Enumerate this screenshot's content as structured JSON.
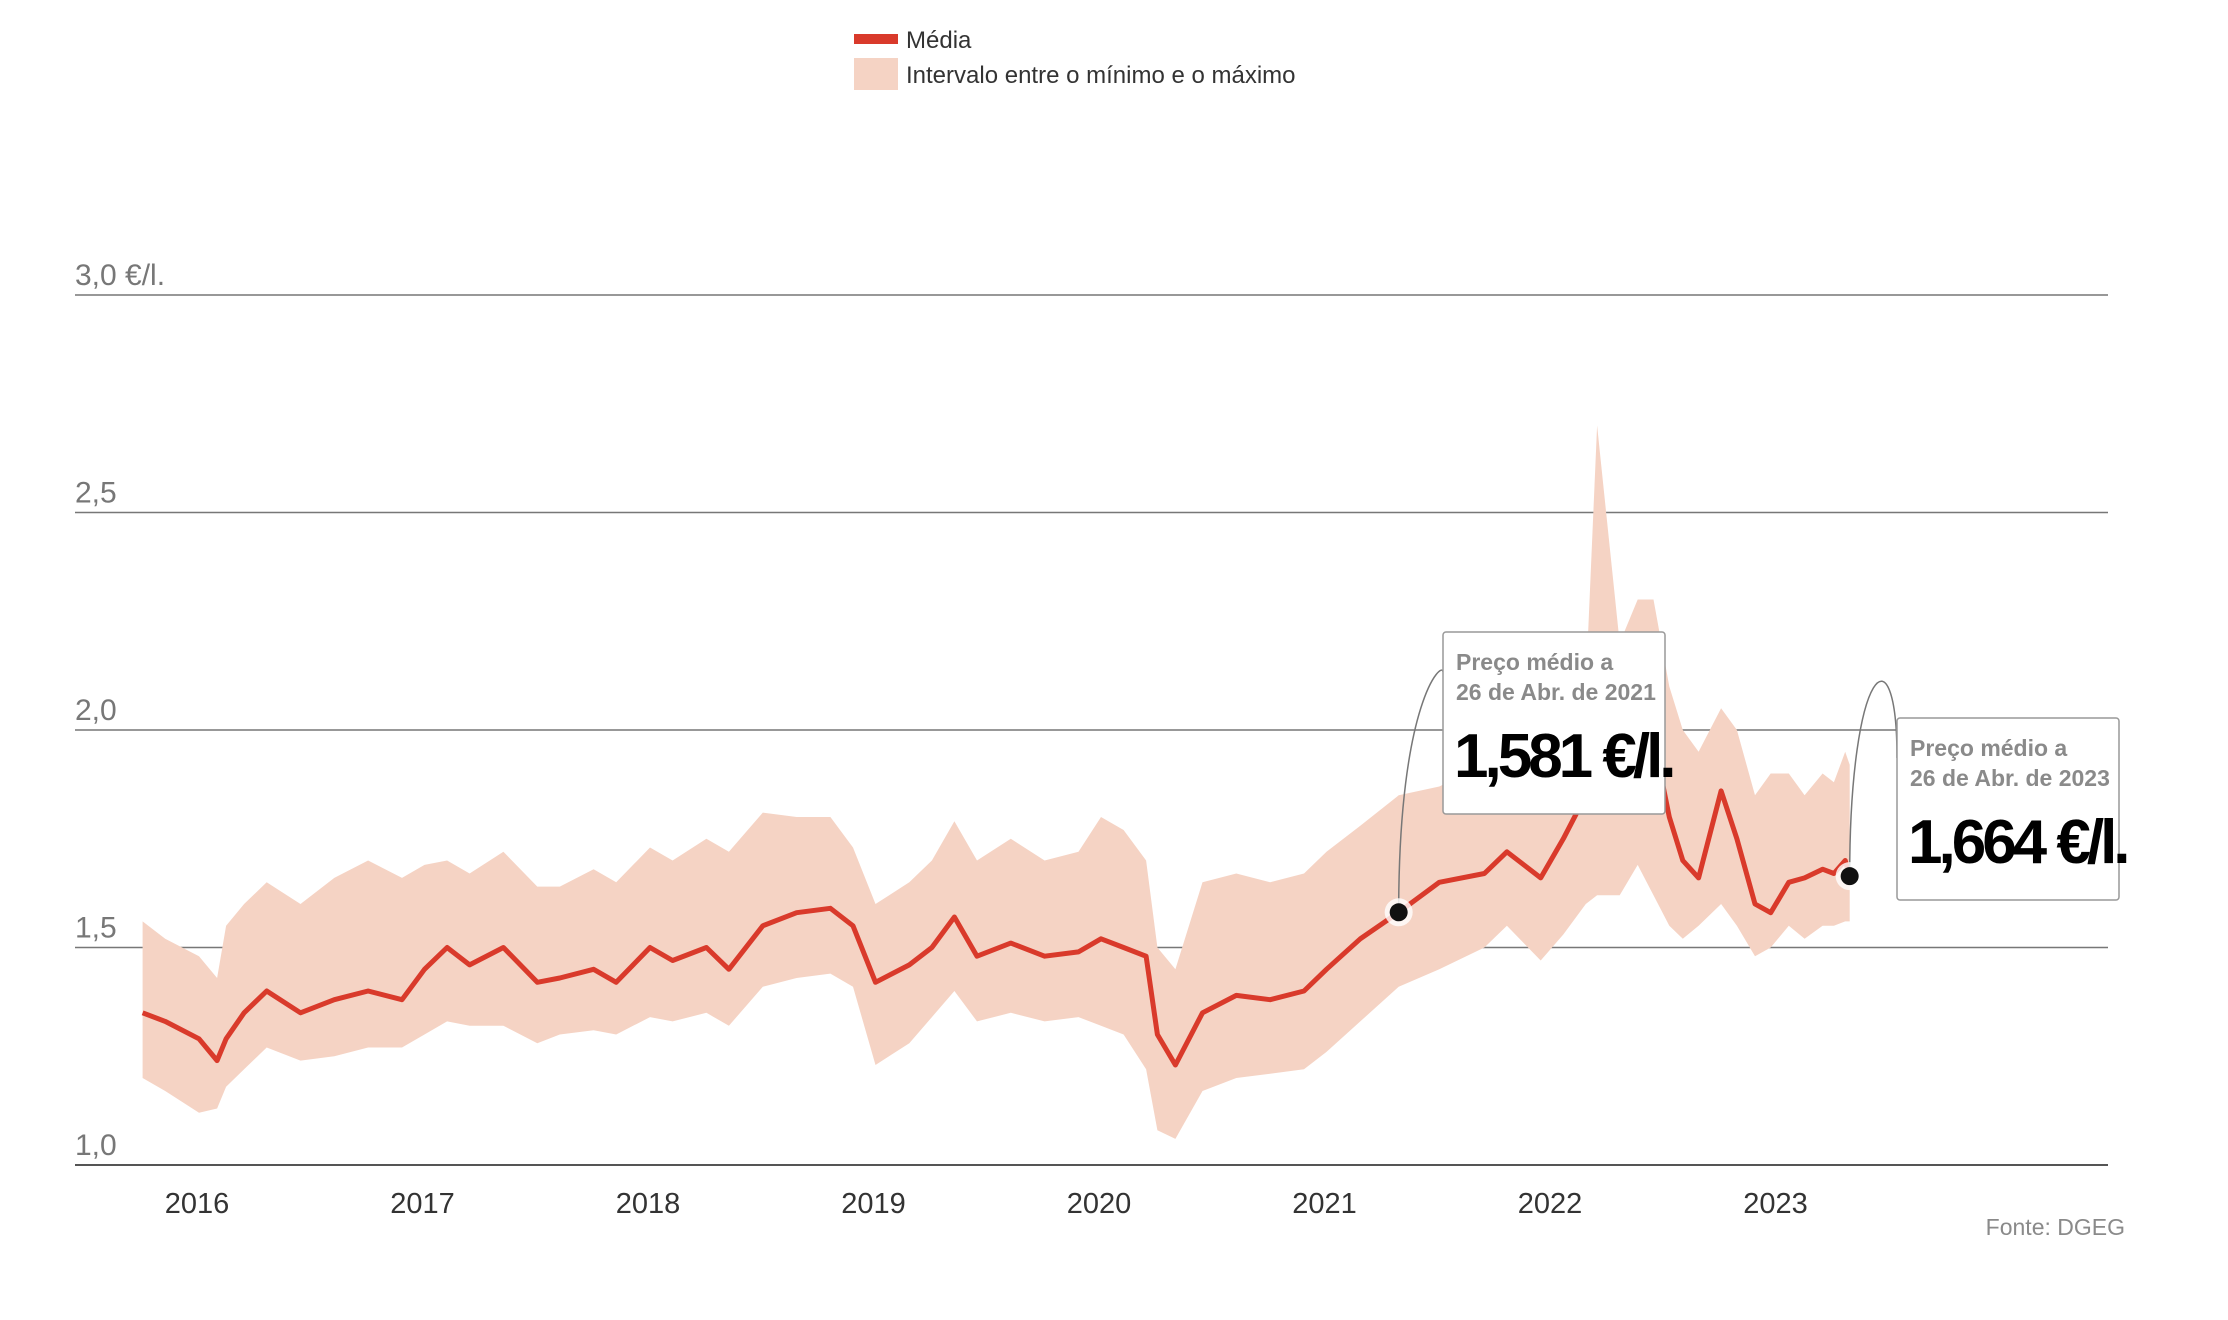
{
  "chart_data": {
    "type": "line",
    "title": "",
    "xlabel": "",
    "ylabel": "",
    "ylim": [
      1.0,
      3.0
    ],
    "y_ticks": [
      {
        "value": 1.0,
        "label": "1,0"
      },
      {
        "value": 1.5,
        "label": "1,5"
      },
      {
        "value": 2.0,
        "label": "2,0"
      },
      {
        "value": 2.5,
        "label": "2,5"
      },
      {
        "value": 3.0,
        "label": "3,0 €/l."
      }
    ],
    "x_ticks": [
      {
        "value": 2016,
        "label": "2016"
      },
      {
        "value": 2017,
        "label": "2017"
      },
      {
        "value": 2018,
        "label": "2018"
      },
      {
        "value": 2019,
        "label": "2019"
      },
      {
        "value": 2020,
        "label": "2020"
      },
      {
        "value": 2021,
        "label": "2021"
      },
      {
        "value": 2022,
        "label": "2022"
      },
      {
        "value": 2023,
        "label": "2023"
      }
    ],
    "legend": {
      "placement": "top-center",
      "entries": [
        {
          "name": "Média",
          "color": "#d93a2b",
          "kind": "line"
        },
        {
          "name": "Intervalo entre o mínimo e o máximo",
          "color": "#f5d3c4",
          "kind": "area"
        }
      ]
    },
    "grid": true,
    "source": "Fonte: DGEG",
    "colors": {
      "mean": "#d93a2b",
      "range": "#f5d3c4",
      "grid": "#777777",
      "axis": "#555555"
    },
    "series": [
      {
        "name": "Média",
        "x": [
          2015.75,
          2015.85,
          2016.0,
          2016.08,
          2016.12,
          2016.2,
          2016.3,
          2016.45,
          2016.6,
          2016.75,
          2016.9,
          2017.0,
          2017.1,
          2017.2,
          2017.35,
          2017.5,
          2017.6,
          2017.75,
          2017.85,
          2018.0,
          2018.1,
          2018.25,
          2018.35,
          2018.5,
          2018.65,
          2018.8,
          2018.9,
          2019.0,
          2019.15,
          2019.25,
          2019.35,
          2019.45,
          2019.6,
          2019.75,
          2019.9,
          2020.0,
          2020.1,
          2020.2,
          2020.25,
          2020.33,
          2020.45,
          2020.6,
          2020.75,
          2020.9,
          2021.0,
          2021.15,
          2021.32,
          2021.5,
          2021.7,
          2021.8,
          2021.95,
          2022.05,
          2022.15,
          2022.2,
          2022.3,
          2022.38,
          2022.45,
          2022.52,
          2022.58,
          2022.65,
          2022.75,
          2022.82,
          2022.9,
          2022.97,
          2023.05,
          2023.12,
          2023.2,
          2023.25,
          2023.3,
          2023.32
        ],
        "values": [
          1.35,
          1.33,
          1.29,
          1.24,
          1.29,
          1.35,
          1.4,
          1.35,
          1.38,
          1.4,
          1.38,
          1.45,
          1.5,
          1.46,
          1.5,
          1.42,
          1.43,
          1.45,
          1.42,
          1.5,
          1.47,
          1.5,
          1.45,
          1.55,
          1.58,
          1.59,
          1.55,
          1.42,
          1.46,
          1.5,
          1.57,
          1.48,
          1.51,
          1.48,
          1.49,
          1.52,
          1.5,
          1.48,
          1.3,
          1.23,
          1.35,
          1.39,
          1.38,
          1.4,
          1.45,
          1.52,
          1.581,
          1.65,
          1.67,
          1.72,
          1.66,
          1.75,
          1.85,
          1.95,
          2.05,
          2.19,
          1.98,
          1.8,
          1.7,
          1.66,
          1.86,
          1.75,
          1.6,
          1.58,
          1.65,
          1.66,
          1.68,
          1.67,
          1.7,
          1.664
        ]
      },
      {
        "name": "Intervalo entre o mínimo e o máximo",
        "x": [
          2015.75,
          2015.85,
          2016.0,
          2016.08,
          2016.12,
          2016.2,
          2016.3,
          2016.45,
          2016.6,
          2016.75,
          2016.9,
          2017.0,
          2017.1,
          2017.2,
          2017.35,
          2017.5,
          2017.6,
          2017.75,
          2017.85,
          2018.0,
          2018.1,
          2018.25,
          2018.35,
          2018.5,
          2018.65,
          2018.8,
          2018.9,
          2019.0,
          2019.15,
          2019.25,
          2019.35,
          2019.45,
          2019.6,
          2019.75,
          2019.9,
          2020.0,
          2020.1,
          2020.2,
          2020.25,
          2020.33,
          2020.45,
          2020.6,
          2020.75,
          2020.9,
          2021.0,
          2021.15,
          2021.32,
          2021.5,
          2021.7,
          2021.8,
          2021.95,
          2022.05,
          2022.15,
          2022.2,
          2022.3,
          2022.38,
          2022.45,
          2022.52,
          2022.58,
          2022.65,
          2022.75,
          2022.82,
          2022.9,
          2022.97,
          2023.05,
          2023.12,
          2023.2,
          2023.25,
          2023.3,
          2023.32
        ],
        "min": [
          1.2,
          1.17,
          1.12,
          1.13,
          1.18,
          1.22,
          1.27,
          1.24,
          1.25,
          1.27,
          1.27,
          1.3,
          1.33,
          1.32,
          1.32,
          1.28,
          1.3,
          1.31,
          1.3,
          1.34,
          1.33,
          1.35,
          1.32,
          1.41,
          1.43,
          1.44,
          1.41,
          1.23,
          1.28,
          1.34,
          1.4,
          1.33,
          1.35,
          1.33,
          1.34,
          1.32,
          1.3,
          1.22,
          1.08,
          1.06,
          1.17,
          1.2,
          1.21,
          1.22,
          1.26,
          1.33,
          1.41,
          1.45,
          1.5,
          1.55,
          1.47,
          1.53,
          1.6,
          1.62,
          1.62,
          1.69,
          1.62,
          1.55,
          1.52,
          1.55,
          1.6,
          1.55,
          1.48,
          1.5,
          1.55,
          1.52,
          1.55,
          1.55,
          1.56,
          1.56
        ],
        "max": [
          1.56,
          1.52,
          1.48,
          1.43,
          1.55,
          1.6,
          1.65,
          1.6,
          1.66,
          1.7,
          1.66,
          1.69,
          1.7,
          1.67,
          1.72,
          1.64,
          1.64,
          1.68,
          1.65,
          1.73,
          1.7,
          1.75,
          1.72,
          1.81,
          1.8,
          1.8,
          1.73,
          1.6,
          1.65,
          1.7,
          1.79,
          1.7,
          1.75,
          1.7,
          1.72,
          1.8,
          1.77,
          1.7,
          1.5,
          1.45,
          1.65,
          1.67,
          1.65,
          1.67,
          1.72,
          1.78,
          1.85,
          1.87,
          1.92,
          1.98,
          1.9,
          2.0,
          2.1,
          2.7,
          2.2,
          2.3,
          2.3,
          2.1,
          2.0,
          1.95,
          2.05,
          2.0,
          1.85,
          1.9,
          1.9,
          1.85,
          1.9,
          1.88,
          1.95,
          1.92
        ]
      }
    ],
    "annotations": [
      {
        "label_line1": "Preço médio a",
        "label_line2": "26 de Abr. de 2021",
        "value_label": "1,581 €/l.",
        "x": 2021.32,
        "y": 1.581
      },
      {
        "label_line1": "Preço médio a",
        "label_line2": "26 de Abr. de 2023",
        "value_label": "1,664 €/l.",
        "x": 2023.32,
        "y": 1.664
      }
    ]
  }
}
